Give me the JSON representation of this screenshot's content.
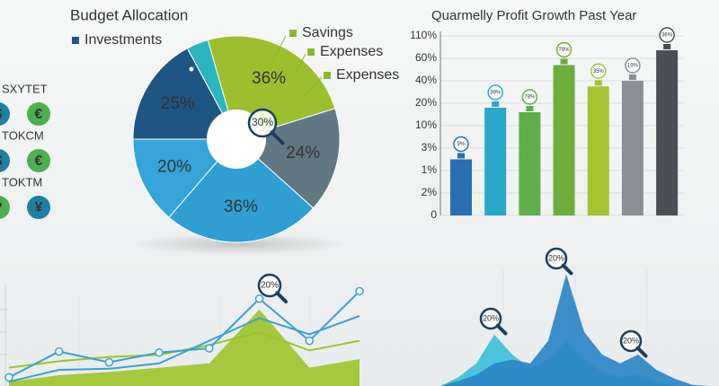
{
  "chart_data": [
    {
      "type": "pie",
      "title": "Budget Allocation",
      "values": [
        25,
        5,
        36,
        24,
        36,
        20
      ],
      "value_labels": [
        "25%",
        null,
        "36%",
        "24%",
        "36%",
        "20%"
      ],
      "colors": [
        "#1f5582",
        "#2bb5c0",
        "#9cbf2e",
        "#607784",
        "#2f9fd4",
        "#35a4d8"
      ],
      "legend": [
        {
          "label": "Investments",
          "color": "#1f5582"
        },
        {
          "label": "Savings",
          "color": "#8cb82a"
        },
        {
          "label": "Expenses",
          "color": "#8cb82a"
        },
        {
          "label": "Expenses",
          "color": "#8cb82a"
        }
      ],
      "annotation": "30%"
    },
    {
      "type": "bar",
      "title": "Quarmelly Profit Growth Past Year",
      "values": [
        2,
        18,
        16,
        54,
        35,
        40,
        78
      ],
      "colors": [
        "#2a6fb0",
        "#2aa8c8",
        "#5fae4a",
        "#6cad3d",
        "#a5c432",
        "#8a8f93",
        "#4a4f54"
      ],
      "badges": [
        "9%",
        "39%",
        "78%",
        "79%",
        "35%",
        "19%",
        "36%"
      ],
      "ylim": [
        0,
        110
      ],
      "yticks": [
        {
          "value": 110,
          "label": "110%"
        },
        {
          "value": 60,
          "label": "60%"
        },
        {
          "value": 40,
          "label": "40%"
        },
        {
          "value": 20,
          "label": "20%"
        },
        {
          "value": 10,
          "label": "10%"
        },
        {
          "value": 3,
          "label": "3%"
        },
        {
          "value": 1,
          "label": "1%"
        },
        {
          "value": 2,
          "label": "2%"
        },
        0
      ],
      "grid": true
    },
    {
      "type": "line",
      "ylim": [
        0,
        100
      ],
      "annotation": "20%",
      "series": [
        {
          "name": null,
          "kind": "area",
          "color": "#9cc42a",
          "values": [
            4,
            10,
            13,
            17,
            21,
            71,
            17,
            25
          ]
        },
        {
          "name": null,
          "kind": "line",
          "color": "#9cc42a",
          "values": [
            17,
            23,
            27,
            29,
            38,
            50,
            33,
            42
          ]
        },
        {
          "name": null,
          "kind": "line",
          "color": "#3aa0d8",
          "values": [
            4,
            15,
            16,
            21,
            42,
            63,
            48,
            65
          ]
        },
        {
          "name": null,
          "kind": "markers",
          "color": "#3aa0d8",
          "values": [
            8,
            32,
            22,
            31,
            35,
            81,
            42,
            88
          ]
        }
      ]
    },
    {
      "type": "area",
      "ylim": [
        0,
        100
      ],
      "annotations": [
        "20%",
        "20%",
        "20%"
      ],
      "series": [
        {
          "name": null,
          "color": "#3fc0dc",
          "values": [
            0,
            7,
            18,
            41,
            25,
            14,
            21,
            36,
            21,
            11,
            7,
            9,
            4,
            0,
            0,
            0
          ]
        },
        {
          "name": null,
          "color": "#2b86c5",
          "values": [
            0,
            4,
            9,
            18,
            21,
            18,
            36,
            89,
            43,
            25,
            18,
            25,
            13,
            6,
            1,
            0
          ]
        }
      ]
    }
  ],
  "sidebar": [
    {
      "label": "SXYTET",
      "icons": [
        "$",
        "€"
      ]
    },
    {
      "label": "TOKCM",
      "icons": [
        "$",
        "€"
      ]
    },
    {
      "label": "TOKTM",
      "icons": [
        "?",
        "¥"
      ]
    }
  ]
}
